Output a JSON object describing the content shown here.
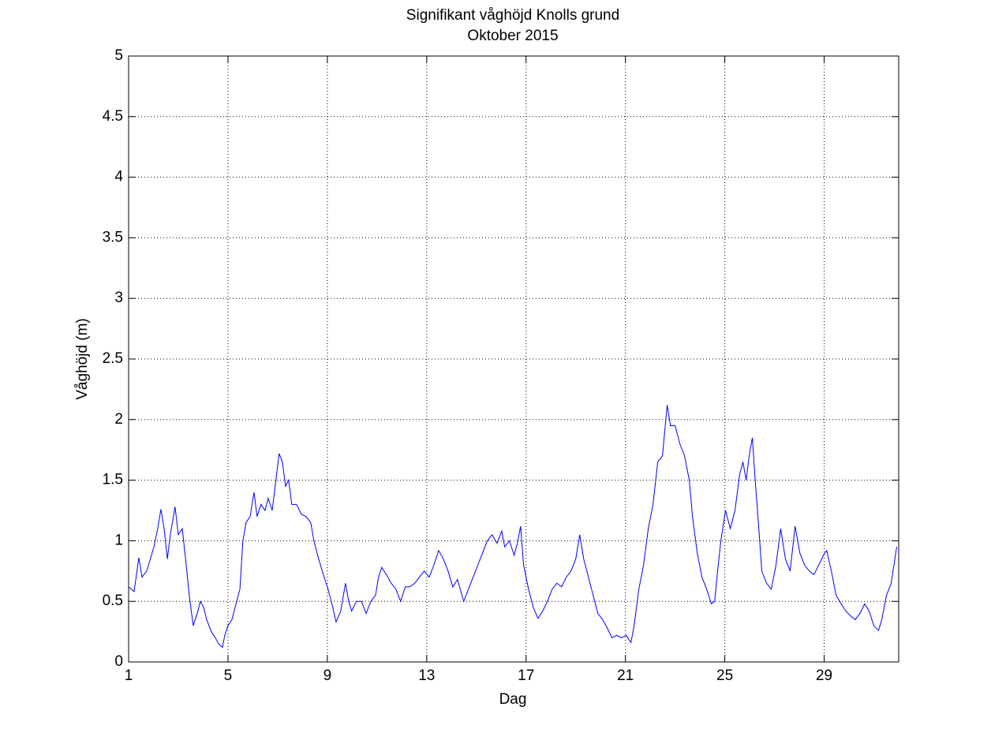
{
  "chart_data": {
    "type": "line",
    "title": "Signifikant våghöjd Knolls grund",
    "subtitle": "Oktober 2015",
    "x_label": "Dag",
    "y_label": "Våghöjd (m)",
    "xlim": [
      1,
      32
    ],
    "ylim": [
      0,
      5
    ],
    "xticks": [
      1,
      5,
      9,
      13,
      17,
      21,
      25,
      29
    ],
    "yticks": [
      0,
      0.5,
      1,
      1.5,
      2,
      2.5,
      3,
      3.5,
      4,
      4.5,
      5
    ],
    "grid": true,
    "series": [
      {
        "color": "#0000ff",
        "x": [
          1.0,
          1.22,
          1.41,
          1.54,
          1.73,
          2.02,
          2.17,
          2.3,
          2.43,
          2.56,
          2.68,
          2.87,
          3.0,
          3.16,
          3.32,
          3.44,
          3.6,
          3.76,
          3.89,
          4.02,
          4.14,
          4.33,
          4.49,
          4.62,
          4.78,
          4.87,
          5.0,
          5.16,
          5.35,
          5.48,
          5.6,
          5.73,
          5.89,
          6.05,
          6.17,
          6.33,
          6.49,
          6.62,
          6.78,
          6.9,
          7.06,
          7.19,
          7.32,
          7.44,
          7.57,
          7.76,
          7.95,
          8.14,
          8.33,
          8.46,
          8.65,
          8.84,
          9.03,
          9.22,
          9.35,
          9.54,
          9.73,
          9.86,
          9.98,
          10.17,
          10.37,
          10.56,
          10.75,
          10.94,
          11.06,
          11.19,
          11.38,
          11.57,
          11.76,
          11.95,
          12.14,
          12.33,
          12.52,
          12.71,
          12.9,
          13.1,
          13.29,
          13.48,
          13.67,
          13.86,
          14.05,
          14.24,
          14.49,
          14.68,
          14.87,
          15.06,
          15.25,
          15.44,
          15.63,
          15.83,
          16.02,
          16.14,
          16.33,
          16.52,
          16.65,
          16.78,
          16.9,
          17.1,
          17.29,
          17.48,
          17.67,
          17.86,
          18.05,
          18.24,
          18.43,
          18.62,
          18.81,
          19.0,
          19.16,
          19.32,
          19.51,
          19.7,
          19.89,
          20.08,
          20.27,
          20.46,
          20.65,
          20.84,
          21.03,
          21.22,
          21.35,
          21.54,
          21.73,
          21.92,
          22.11,
          22.3,
          22.49,
          22.68,
          22.81,
          23.0,
          23.19,
          23.38,
          23.57,
          23.7,
          23.89,
          24.08,
          24.27,
          24.46,
          24.59,
          24.71,
          24.84,
          25.03,
          25.22,
          25.41,
          25.6,
          25.73,
          25.86,
          25.98,
          26.11,
          26.24,
          26.37,
          26.49,
          26.68,
          26.87,
          27.06,
          27.25,
          27.44,
          27.63,
          27.83,
          28.02,
          28.21,
          28.4,
          28.59,
          28.78,
          28.97,
          29.1,
          29.29,
          29.48,
          29.68,
          29.87,
          30.06,
          30.25,
          30.44,
          30.63,
          30.81,
          31.0,
          31.19,
          31.32,
          31.51,
          31.7,
          31.92
        ],
        "values": [
          0.62,
          0.58,
          0.86,
          0.7,
          0.75,
          0.95,
          1.1,
          1.26,
          1.1,
          0.85,
          1.05,
          1.28,
          1.05,
          1.1,
          0.8,
          0.55,
          0.3,
          0.4,
          0.5,
          0.45,
          0.35,
          0.25,
          0.2,
          0.15,
          0.12,
          0.22,
          0.3,
          0.35,
          0.5,
          0.6,
          1.0,
          1.15,
          1.2,
          1.4,
          1.2,
          1.3,
          1.25,
          1.35,
          1.25,
          1.45,
          1.72,
          1.65,
          1.45,
          1.5,
          1.3,
          1.3,
          1.22,
          1.2,
          1.15,
          1.0,
          0.85,
          0.72,
          0.6,
          0.45,
          0.33,
          0.42,
          0.65,
          0.5,
          0.42,
          0.5,
          0.5,
          0.4,
          0.5,
          0.55,
          0.7,
          0.78,
          0.72,
          0.65,
          0.6,
          0.5,
          0.62,
          0.62,
          0.65,
          0.7,
          0.75,
          0.7,
          0.8,
          0.92,
          0.85,
          0.75,
          0.62,
          0.68,
          0.5,
          0.6,
          0.7,
          0.8,
          0.9,
          1.0,
          1.05,
          0.98,
          1.08,
          0.95,
          1.0,
          0.88,
          0.98,
          1.12,
          0.8,
          0.6,
          0.45,
          0.36,
          0.42,
          0.5,
          0.6,
          0.65,
          0.62,
          0.7,
          0.75,
          0.85,
          1.05,
          0.85,
          0.7,
          0.55,
          0.4,
          0.35,
          0.28,
          0.2,
          0.22,
          0.2,
          0.22,
          0.16,
          0.3,
          0.6,
          0.8,
          1.1,
          1.3,
          1.65,
          1.7,
          2.12,
          1.95,
          1.95,
          1.8,
          1.7,
          1.5,
          1.2,
          0.9,
          0.7,
          0.6,
          0.48,
          0.5,
          0.75,
          1.0,
          1.25,
          1.1,
          1.25,
          1.55,
          1.65,
          1.5,
          1.7,
          1.85,
          1.45,
          1.1,
          0.75,
          0.65,
          0.6,
          0.8,
          1.1,
          0.85,
          0.75,
          1.12,
          0.9,
          0.8,
          0.75,
          0.72,
          0.8,
          0.88,
          0.92,
          0.75,
          0.55,
          0.48,
          0.42,
          0.38,
          0.35,
          0.4,
          0.48,
          0.42,
          0.3,
          0.26,
          0.35,
          0.55,
          0.65,
          0.95
        ]
      }
    ]
  }
}
